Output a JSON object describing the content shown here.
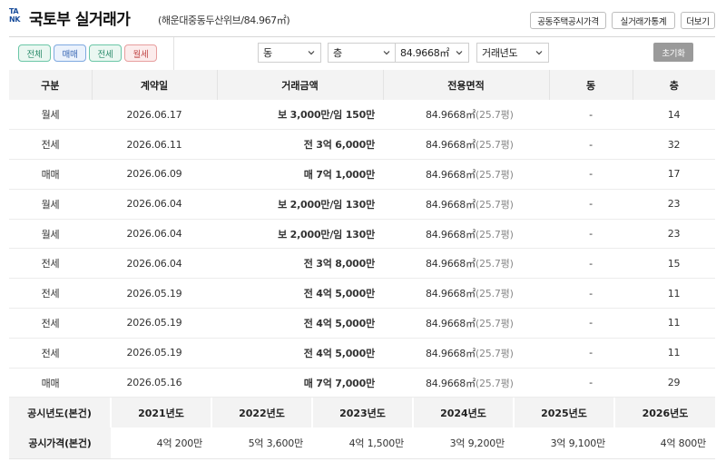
{
  "header": {
    "logo_lines": [
      "TA",
      "NK"
    ],
    "title": "국토부 실거래가",
    "subtitle": "(해운대중동두산위브/84.967㎡)",
    "buttons": [
      "공동주택공시가격",
      "실거래가통계",
      "더보기"
    ]
  },
  "filters": {
    "chips": [
      {
        "label": "전체",
        "style": "green"
      },
      {
        "label": "매매",
        "style": "blue"
      },
      {
        "label": "전세",
        "style": "green"
      },
      {
        "label": "월세",
        "style": "red"
      }
    ],
    "selects": [
      "동",
      "층",
      "84.9668㎡",
      "거래년도"
    ],
    "reset_label": "초기화"
  },
  "transactions": {
    "columns": [
      "구분",
      "계약일",
      "거래금액",
      "전용면적",
      "동",
      "층"
    ],
    "rows": [
      {
        "type": "월세",
        "date": "2026.06.17",
        "price": "보 3,000만/임 150만",
        "kind": "wolse",
        "area": "84.9668㎡",
        "pyeong": "(25.7평)",
        "dong": "-",
        "floor": "14"
      },
      {
        "type": "전세",
        "date": "2026.06.11",
        "price": "전 3억 6,000만",
        "kind": "jeonse",
        "area": "84.9668㎡",
        "pyeong": "(25.7평)",
        "dong": "-",
        "floor": "32"
      },
      {
        "type": "매매",
        "date": "2026.06.09",
        "price": "매 7억 1,000만",
        "kind": "maemae",
        "area": "84.9668㎡",
        "pyeong": "(25.7평)",
        "dong": "-",
        "floor": "17"
      },
      {
        "type": "월세",
        "date": "2026.06.04",
        "price": "보 2,000만/임 130만",
        "kind": "wolse",
        "area": "84.9668㎡",
        "pyeong": "(25.7평)",
        "dong": "-",
        "floor": "23"
      },
      {
        "type": "월세",
        "date": "2026.06.04",
        "price": "보 2,000만/임 130만",
        "kind": "wolse",
        "area": "84.9668㎡",
        "pyeong": "(25.7평)",
        "dong": "-",
        "floor": "23"
      },
      {
        "type": "전세",
        "date": "2026.06.04",
        "price": "전 3억 8,000만",
        "kind": "jeonse",
        "area": "84.9668㎡",
        "pyeong": "(25.7평)",
        "dong": "-",
        "floor": "15"
      },
      {
        "type": "전세",
        "date": "2026.05.19",
        "price": "전 4억 5,000만",
        "kind": "jeonse",
        "area": "84.9668㎡",
        "pyeong": "(25.7평)",
        "dong": "-",
        "floor": "11"
      },
      {
        "type": "전세",
        "date": "2026.05.19",
        "price": "전 4억 5,000만",
        "kind": "jeonse",
        "area": "84.9668㎡",
        "pyeong": "(25.7평)",
        "dong": "-",
        "floor": "11"
      },
      {
        "type": "전세",
        "date": "2026.05.19",
        "price": "전 4억 5,000만",
        "kind": "jeonse",
        "area": "84.9668㎡",
        "pyeong": "(25.7평)",
        "dong": "-",
        "floor": "11"
      },
      {
        "type": "매매",
        "date": "2026.05.16",
        "price": "매 7억 7,000만",
        "kind": "maemae",
        "area": "84.9668㎡",
        "pyeong": "(25.7평)",
        "dong": "-",
        "floor": "29"
      }
    ]
  },
  "official_price": {
    "year_header": "공시년도(본건)",
    "price_header": "공시가격(본건)",
    "years": [
      "2021년도",
      "2022년도",
      "2023년도",
      "2024년도",
      "2025년도",
      "2026년도"
    ],
    "prices": [
      "4억 200만",
      "5억 3,600만",
      "4억 1,500만",
      "3억 9,200만",
      "3억 9,100만",
      "4억 800만"
    ]
  },
  "colors": {
    "wolse": "#ef6b3f",
    "jeonse": "#2fb02a",
    "maemae": "#3654d8",
    "logo": "#1b4f9c"
  }
}
